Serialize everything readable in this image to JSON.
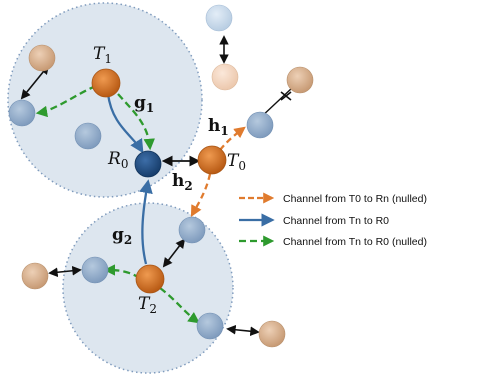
{
  "nodes": {
    "T1": {
      "main": "T",
      "sub": "1"
    },
    "T2": {
      "main": "T",
      "sub": "2"
    },
    "T0": {
      "main": "T",
      "sub": "0"
    },
    "R0": {
      "main": "R",
      "sub": "0"
    }
  },
  "channels": {
    "g1": {
      "main": "g",
      "sub": "1"
    },
    "g2": {
      "main": "g",
      "sub": "2"
    },
    "h1": {
      "main": "h",
      "sub": "1"
    },
    "h2": {
      "main": "h",
      "sub": "2"
    }
  },
  "legend": {
    "items": [
      {
        "label": "Channel from T0 to Rn (nulled)",
        "color": "#e07b2e",
        "style": "dashed"
      },
      {
        "label": "Channel from Tn to R0",
        "color": "#3a6ea5",
        "style": "solid"
      },
      {
        "label": "Channel from Tn to R0 (nulled)",
        "color": "#2e9a2e",
        "style": "dashed"
      }
    ]
  },
  "colors": {
    "cluster_fill": "#dde6ef",
    "cluster_border": "#7f9bbd",
    "transmitter": "#c96a1f",
    "receiver_main": "#1f4e85",
    "receiver": "#8ea9c8",
    "peripheral_tan": "#d9b291",
    "orange_channel": "#e07b2e",
    "blue_channel": "#3a6ea5",
    "green_channel": "#2e9a2e"
  }
}
